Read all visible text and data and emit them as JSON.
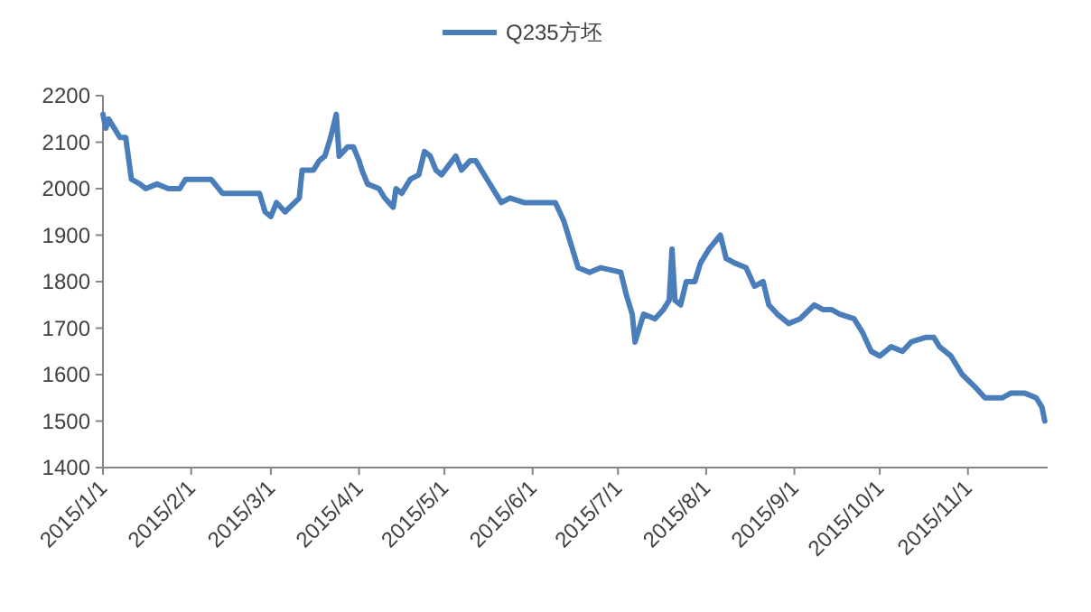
{
  "chart_data": {
    "type": "line",
    "legend": "top",
    "grid": false,
    "marker": "none",
    "line_style": "solid",
    "xlim": [
      "2015-01-01",
      "2015-11-29"
    ],
    "xticks": [
      {
        "value": "2015-01-01",
        "label": "2015/1/1"
      },
      {
        "value": "2015-02-01",
        "label": "2015/2/1"
      },
      {
        "value": "2015-03-01",
        "label": "2015/3/1"
      },
      {
        "value": "2015-04-01",
        "label": "2015/4/1"
      },
      {
        "value": "2015-05-01",
        "label": "2015/5/1"
      },
      {
        "value": "2015-06-01",
        "label": "2015/6/1"
      },
      {
        "value": "2015-07-01",
        "label": "2015/7/1"
      },
      {
        "value": "2015-08-01",
        "label": "2015/8/1"
      },
      {
        "value": "2015-09-01",
        "label": "2015/9/1"
      },
      {
        "value": "2015-10-01",
        "label": "2015/10/1"
      },
      {
        "value": "2015-11-01",
        "label": "2015/11/1"
      }
    ],
    "ylim": [
      1400,
      2200
    ],
    "yticks": [
      1400,
      1500,
      1600,
      1700,
      1800,
      1900,
      2000,
      2100,
      2200
    ],
    "series": [
      {
        "name": "Q235方坯",
        "color": "#4a7ebb",
        "x": [
          "2015-01-01",
          "2015-01-02",
          "2015-01-03",
          "2015-01-05",
          "2015-01-07",
          "2015-01-09",
          "2015-01-11",
          "2015-01-14",
          "2015-01-16",
          "2015-01-20",
          "2015-01-24",
          "2015-01-28",
          "2015-01-30",
          "2015-02-08",
          "2015-02-12",
          "2015-02-25",
          "2015-02-27",
          "2015-03-01",
          "2015-03-03",
          "2015-03-06",
          "2015-03-11",
          "2015-03-12",
          "2015-03-16",
          "2015-03-18",
          "2015-03-20",
          "2015-03-22",
          "2015-03-24",
          "2015-03-25",
          "2015-03-28",
          "2015-03-30",
          "2015-04-01",
          "2015-04-02",
          "2015-04-04",
          "2015-04-08",
          "2015-04-10",
          "2015-04-13",
          "2015-04-14",
          "2015-04-16",
          "2015-04-19",
          "2015-04-22",
          "2015-04-24",
          "2015-04-26",
          "2015-04-28",
          "2015-04-30",
          "2015-05-05",
          "2015-05-07",
          "2015-05-10",
          "2015-05-12",
          "2015-05-16",
          "2015-05-21",
          "2015-05-24",
          "2015-05-29",
          "2015-06-09",
          "2015-06-12",
          "2015-06-14",
          "2015-06-17",
          "2015-06-21",
          "2015-06-25",
          "2015-07-02",
          "2015-07-04",
          "2015-07-06",
          "2015-07-07",
          "2015-07-10",
          "2015-07-14",
          "2015-07-17",
          "2015-07-19",
          "2015-07-20",
          "2015-07-21",
          "2015-07-23",
          "2015-07-25",
          "2015-07-28",
          "2015-07-30",
          "2015-08-02",
          "2015-08-06",
          "2015-08-08",
          "2015-08-11",
          "2015-08-15",
          "2015-08-18",
          "2015-08-21",
          "2015-08-23",
          "2015-08-26",
          "2015-08-30",
          "2015-09-03",
          "2015-09-08",
          "2015-09-11",
          "2015-09-14",
          "2015-09-17",
          "2015-09-22",
          "2015-09-25",
          "2015-09-28",
          "2015-10-01",
          "2015-10-05",
          "2015-10-09",
          "2015-10-12",
          "2015-10-17",
          "2015-10-20",
          "2015-10-22",
          "2015-10-26",
          "2015-10-30",
          "2015-11-04",
          "2015-11-07",
          "2015-11-10",
          "2015-11-13",
          "2015-11-16",
          "2015-11-21",
          "2015-11-25",
          "2015-11-27",
          "2015-11-28"
        ],
        "values": [
          2160,
          2130,
          2150,
          2130,
          2110,
          2110,
          2020,
          2010,
          2000,
          2010,
          2000,
          2000,
          2020,
          2020,
          1990,
          1990,
          1950,
          1940,
          1970,
          1950,
          1980,
          2040,
          2040,
          2060,
          2070,
          2110,
          2160,
          2070,
          2090,
          2090,
          2060,
          2040,
          2010,
          2000,
          1980,
          1960,
          2000,
          1990,
          2020,
          2030,
          2080,
          2070,
          2040,
          2030,
          2070,
          2040,
          2060,
          2060,
          2020,
          1970,
          1980,
          1970,
          1970,
          1930,
          1890,
          1830,
          1820,
          1830,
          1820,
          1770,
          1730,
          1670,
          1730,
          1720,
          1740,
          1760,
          1870,
          1760,
          1750,
          1800,
          1800,
          1840,
          1870,
          1900,
          1850,
          1840,
          1830,
          1790,
          1800,
          1750,
          1730,
          1710,
          1720,
          1750,
          1740,
          1740,
          1730,
          1720,
          1690,
          1650,
          1640,
          1660,
          1650,
          1670,
          1680,
          1680,
          1660,
          1640,
          1600,
          1570,
          1550,
          1550,
          1550,
          1560,
          1560,
          1550,
          1530,
          1500
        ]
      }
    ]
  }
}
